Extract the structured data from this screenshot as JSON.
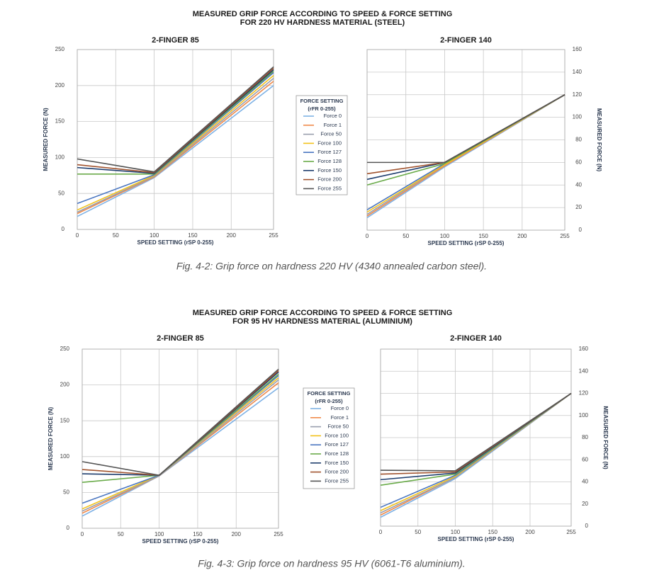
{
  "figures": [
    {
      "title": [
        "MEASURED GRIP FORCE ACCORDING TO SPEED & FORCE SETTING",
        "FOR 220 HV HARDNESS MATERIAL (STEEL)"
      ],
      "legend_title": [
        "FORCE SETTING",
        "(rFR 0-255)"
      ],
      "caption": "Fig. 4-2: Grip force on hardness 220 HV (4340 annealed carbon steel)."
    },
    {
      "title": [
        "MEASURED GRIP FORCE ACCORDING TO SPEED & FORCE SETTING",
        "FOR 95 HV HARDNESS MATERIAL (ALUMINIUM)"
      ],
      "legend_title": [
        "FORCE SETTING",
        "(rFR 0-255)"
      ],
      "caption": "Fig. 4-3: Grip force on hardness 95 HV (6061-T6 aluminium)."
    }
  ],
  "chart_data": [
    {
      "type": "line",
      "title": "2-FINGER 85",
      "x_label": "SPEED SETTING (rSP 0-255)",
      "y_label": "MEASURED FORCE (N)",
      "x": [
        0,
        100,
        255
      ],
      "xlim": [
        0,
        255
      ],
      "xticks": [
        0,
        50,
        100,
        150,
        200,
        255
      ],
      "ylim": [
        0,
        250
      ],
      "yticks": [
        0,
        50,
        100,
        150,
        200,
        250
      ],
      "grid": true,
      "y_axis_side": "left",
      "series": [
        {
          "name": "Force 0",
          "color": "#7fb2e5",
          "values": [
            18,
            72,
            200
          ]
        },
        {
          "name": "Force 1",
          "color": "#f08a4b",
          "values": [
            22,
            73,
            206
          ]
        },
        {
          "name": "Force 50",
          "color": "#9a9fae",
          "values": [
            24,
            74,
            210
          ]
        },
        {
          "name": "Force 100",
          "color": "#f2c21b",
          "values": [
            27,
            75,
            214
          ]
        },
        {
          "name": "Force 127",
          "color": "#4a76c0",
          "values": [
            36,
            76,
            218
          ]
        },
        {
          "name": "Force 128",
          "color": "#6aab4a",
          "values": [
            77,
            77,
            220
          ]
        },
        {
          "name": "Force 150",
          "color": "#1f3e6e",
          "values": [
            86,
            78,
            222
          ]
        },
        {
          "name": "Force 200",
          "color": "#a0522d",
          "values": [
            90,
            79,
            224
          ]
        },
        {
          "name": "Force 255",
          "color": "#555555",
          "values": [
            98,
            80,
            226
          ]
        }
      ]
    },
    {
      "type": "line",
      "title": "2-FINGER 140",
      "x_label": "SPEED SETTING (rSP 0-255)",
      "y_label": "MEASURED FORCE (N)",
      "x": [
        0,
        100,
        255
      ],
      "xlim": [
        0,
        255
      ],
      "xticks": [
        0,
        50,
        100,
        150,
        200,
        255
      ],
      "ylim": [
        0,
        160
      ],
      "yticks": [
        0,
        20,
        40,
        60,
        80,
        100,
        120,
        140,
        160
      ],
      "grid": true,
      "y_axis_side": "right",
      "series": [
        {
          "color": "#7fb2e5",
          "values": [
            11,
            56,
            120
          ]
        },
        {
          "color": "#f08a4b",
          "values": [
            12.5,
            57,
            120
          ]
        },
        {
          "color": "#9a9fae",
          "values": [
            14,
            58,
            120
          ]
        },
        {
          "color": "#f2c21b",
          "values": [
            16,
            58,
            120
          ]
        },
        {
          "color": "#4a76c0",
          "values": [
            18,
            59,
            120
          ]
        },
        {
          "color": "#6aab4a",
          "values": [
            40,
            59,
            120
          ]
        },
        {
          "color": "#1f3e6e",
          "values": [
            45,
            60,
            120
          ]
        },
        {
          "color": "#a0522d",
          "values": [
            50,
            60,
            120
          ]
        },
        {
          "color": "#555555",
          "values": [
            60,
            60,
            120
          ]
        }
      ]
    },
    {
      "type": "line",
      "title": "2-FINGER 85",
      "x_label": "SPEED SETTING (rSP 0-255)",
      "y_label": "MEASURED FORCE (N)",
      "x": [
        0,
        100,
        255
      ],
      "xlim": [
        0,
        255
      ],
      "xticks": [
        0,
        50,
        100,
        150,
        200,
        255
      ],
      "ylim": [
        0,
        250
      ],
      "yticks": [
        0,
        50,
        100,
        150,
        200,
        250
      ],
      "grid": true,
      "y_axis_side": "left",
      "series": [
        {
          "name": "Force 0",
          "color": "#7fb2e5",
          "values": [
            17,
            73,
            196
          ]
        },
        {
          "name": "Force 1",
          "color": "#f08a4b",
          "values": [
            21,
            73,
            203
          ]
        },
        {
          "name": "Force 50",
          "color": "#9a9fae",
          "values": [
            24,
            73,
            207
          ]
        },
        {
          "name": "Force 100",
          "color": "#f2c21b",
          "values": [
            27,
            74,
            210
          ]
        },
        {
          "name": "Force 127",
          "color": "#4a76c0",
          "values": [
            35,
            74,
            213
          ]
        },
        {
          "name": "Force 128",
          "color": "#6aab4a",
          "values": [
            64,
            74,
            215
          ]
        },
        {
          "name": "Force 150",
          "color": "#1f3e6e",
          "values": [
            76,
            74,
            218
          ]
        },
        {
          "name": "Force 200",
          "color": "#a0522d",
          "values": [
            82,
            74,
            220
          ]
        },
        {
          "name": "Force 255",
          "color": "#555555",
          "values": [
            93,
            74,
            222
          ]
        }
      ]
    },
    {
      "type": "line",
      "title": "2-FINGER 140",
      "x_label": "SPEED SETTING (rSP 0-255)",
      "y_label": "MEASURED FORCE (N)",
      "x": [
        0,
        100,
        255
      ],
      "xlim": [
        0,
        255
      ],
      "xticks": [
        0,
        50,
        100,
        150,
        200,
        255
      ],
      "ylim": [
        0,
        160
      ],
      "yticks": [
        0,
        20,
        40,
        60,
        80,
        100,
        120,
        140,
        160
      ],
      "grid": true,
      "y_axis_side": "right",
      "series": [
        {
          "color": "#7fb2e5",
          "values": [
            8,
            43,
            120
          ]
        },
        {
          "color": "#f08a4b",
          "values": [
            10,
            44,
            120
          ]
        },
        {
          "color": "#9a9fae",
          "values": [
            12,
            44,
            120
          ]
        },
        {
          "color": "#f2c21b",
          "values": [
            14,
            45,
            120
          ]
        },
        {
          "color": "#4a76c0",
          "values": [
            17,
            46,
            120
          ]
        },
        {
          "color": "#6aab4a",
          "values": [
            37,
            47,
            120
          ]
        },
        {
          "color": "#1f3e6e",
          "values": [
            42,
            48,
            120
          ]
        },
        {
          "color": "#a0522d",
          "values": [
            47,
            49,
            120
          ]
        },
        {
          "color": "#555555",
          "values": [
            50.5,
            50,
            120
          ]
        }
      ]
    }
  ]
}
